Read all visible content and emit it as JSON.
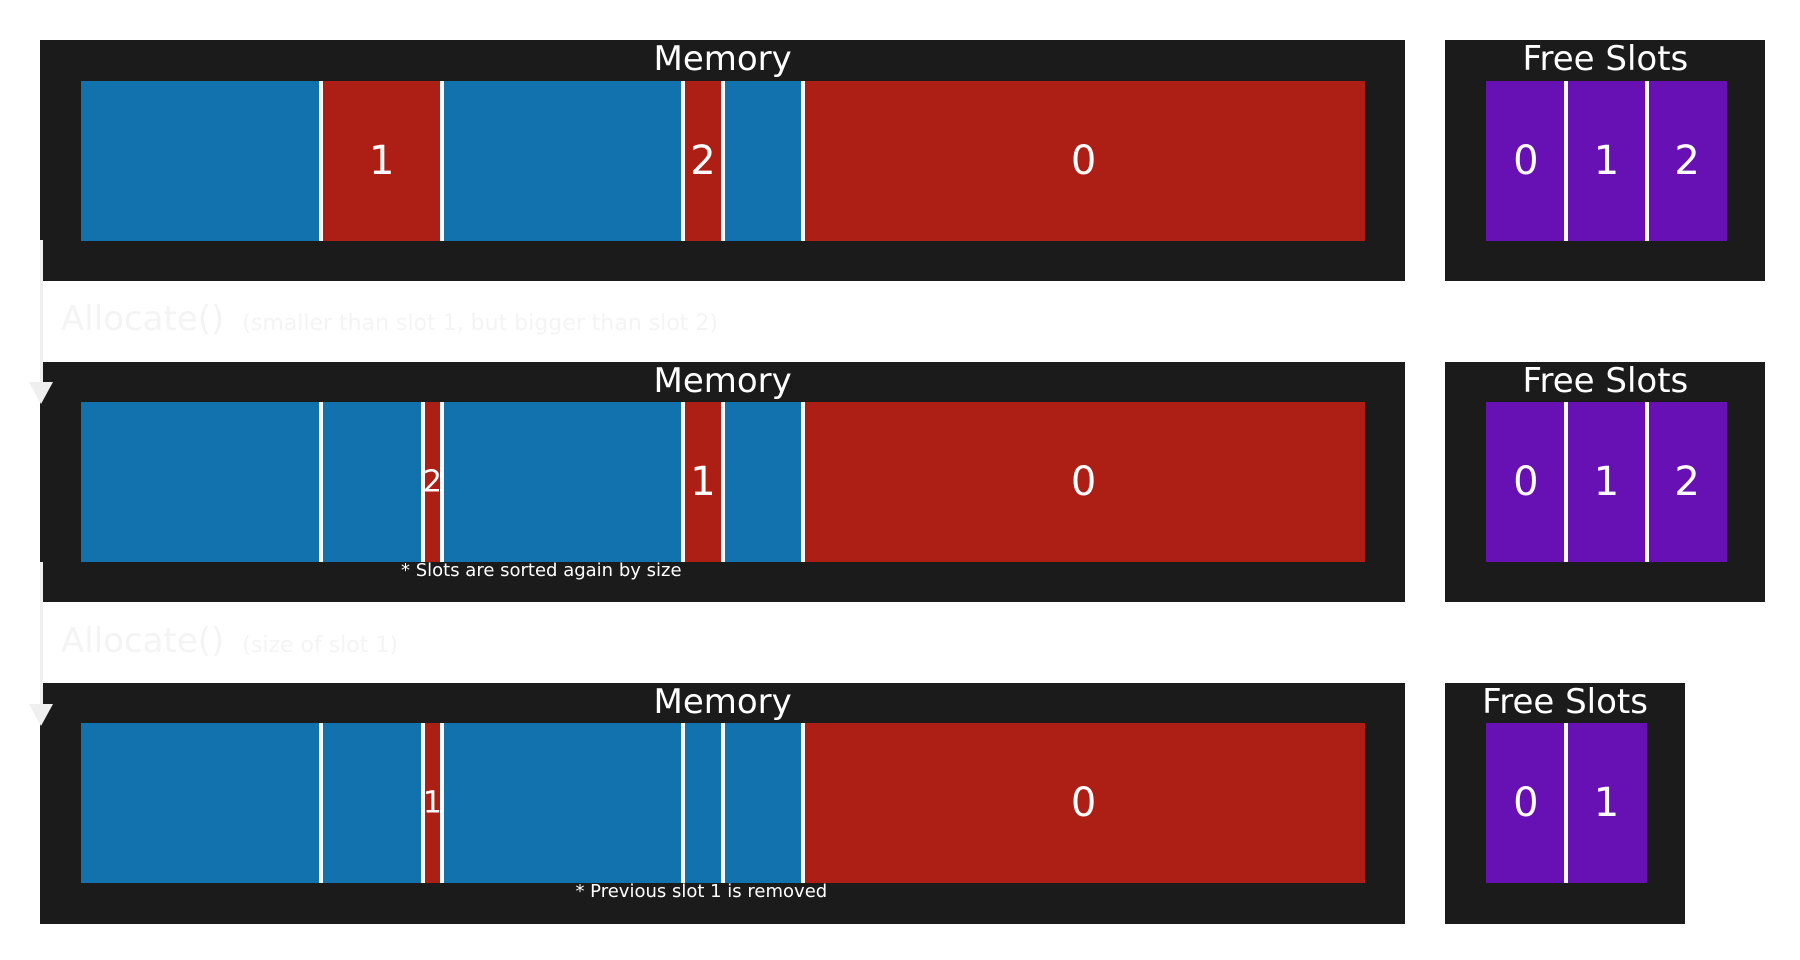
{
  "colors": {
    "panel": "#1b1b1b",
    "allocated": "#1172ae",
    "free": "#ad1f14",
    "slot": "#6710b3",
    "divider": "#ffffff"
  },
  "rows": [
    {
      "memory_title": "Memory",
      "free_title": "Free Slots",
      "memory_segments": [
        {
          "kind": "allocated",
          "label": ""
        },
        {
          "kind": "free",
          "label": "1"
        },
        {
          "kind": "allocated",
          "label": ""
        },
        {
          "kind": "free",
          "label": "2"
        },
        {
          "kind": "allocated",
          "label": ""
        },
        {
          "kind": "free",
          "label": "0"
        }
      ],
      "free_slots": [
        "0",
        "1",
        "2"
      ],
      "note": ""
    },
    {
      "memory_title": "Memory",
      "free_title": "Free Slots",
      "memory_segments": [
        {
          "kind": "allocated",
          "label": ""
        },
        {
          "kind": "allocated",
          "label": ""
        },
        {
          "kind": "free",
          "label": "2"
        },
        {
          "kind": "allocated",
          "label": ""
        },
        {
          "kind": "free",
          "label": "1"
        },
        {
          "kind": "allocated",
          "label": ""
        },
        {
          "kind": "free",
          "label": "0"
        }
      ],
      "free_slots": [
        "0",
        "1",
        "2"
      ],
      "note": "* Slots are sorted again by size"
    },
    {
      "memory_title": "Memory",
      "free_title": "Free Slots",
      "memory_segments": [
        {
          "kind": "allocated",
          "label": ""
        },
        {
          "kind": "allocated",
          "label": ""
        },
        {
          "kind": "free",
          "label": "1"
        },
        {
          "kind": "allocated",
          "label": ""
        },
        {
          "kind": "allocated",
          "label": ""
        },
        {
          "kind": "allocated",
          "label": ""
        },
        {
          "kind": "free",
          "label": "0"
        }
      ],
      "free_slots": [
        "0",
        "1"
      ],
      "note": "* Previous slot 1 is removed"
    }
  ],
  "steps": [
    {
      "call": "Allocate()",
      "detail": "(smaller than slot 1, but bigger than slot 2)"
    },
    {
      "call": "Allocate()",
      "detail": "(size of slot 1)"
    }
  ]
}
